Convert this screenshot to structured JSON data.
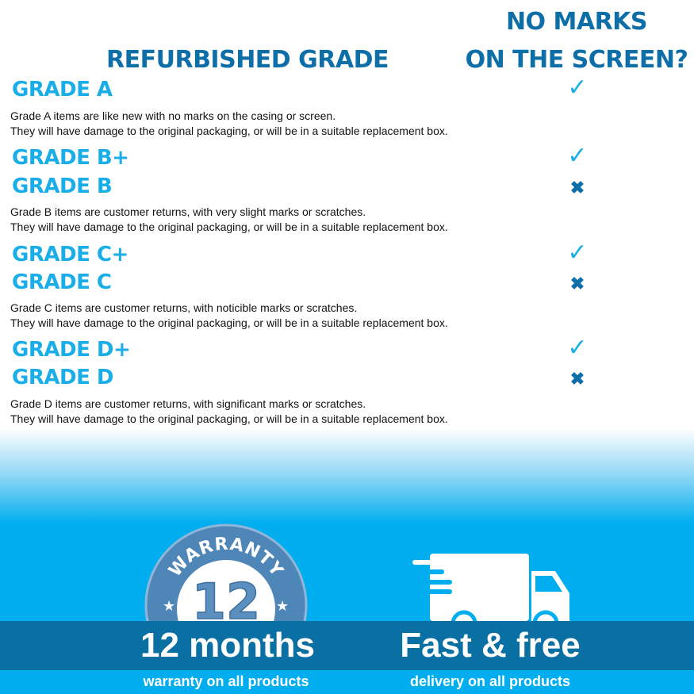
{
  "header": {
    "grade_title": "REFURBISHED GRADE",
    "marks_title_line1": "NO MARKS",
    "marks_title_line2": "ON THE SCREEN?"
  },
  "grades": [
    {
      "name": "GRADE A",
      "no_marks": true
    },
    {
      "name": "GRADE B+",
      "no_marks": true
    },
    {
      "name": "GRADE B",
      "no_marks": false
    },
    {
      "name": "GRADE C+",
      "no_marks": true
    },
    {
      "name": "GRADE C",
      "no_marks": false
    },
    {
      "name": "GRADE D+",
      "no_marks": true
    },
    {
      "name": "GRADE D",
      "no_marks": false
    }
  ],
  "descriptions": [
    {
      "line1": "Grade A items are like new with no marks on the casing or screen.",
      "line2": "They will have damage to the original packaging, or will be in a suitable replacement box."
    },
    {
      "line1": "Grade B items are customer returns, with very slight marks or scratches.",
      "line2": "They will have damage to the original packaging, or will be in a suitable replacement box."
    },
    {
      "line1": "Grade C items are customer returns, with noticible marks or scratches.",
      "line2": "They will have damage to the original packaging, or will be in a suitable replacement box."
    },
    {
      "line1": "Grade D items are customer returns, with significant marks or scratches.",
      "line2": "They will have damage to the original packaging, or will be in a suitable replacement box."
    }
  ],
  "icons": {
    "yes": "check-icon",
    "no": "cross-icon"
  },
  "footer": {
    "badge_text": "WARRANTY",
    "badge_number": "12",
    "warranty_title": "12 months",
    "warranty_sub": "warranty on all products",
    "delivery_title": "Fast & free",
    "delivery_sub": "delivery on all products"
  },
  "colors": {
    "grade": "#1aaee8",
    "header": "#0e6fa8",
    "band": "#0a6fa3",
    "footer_bg": "#00aeef"
  }
}
